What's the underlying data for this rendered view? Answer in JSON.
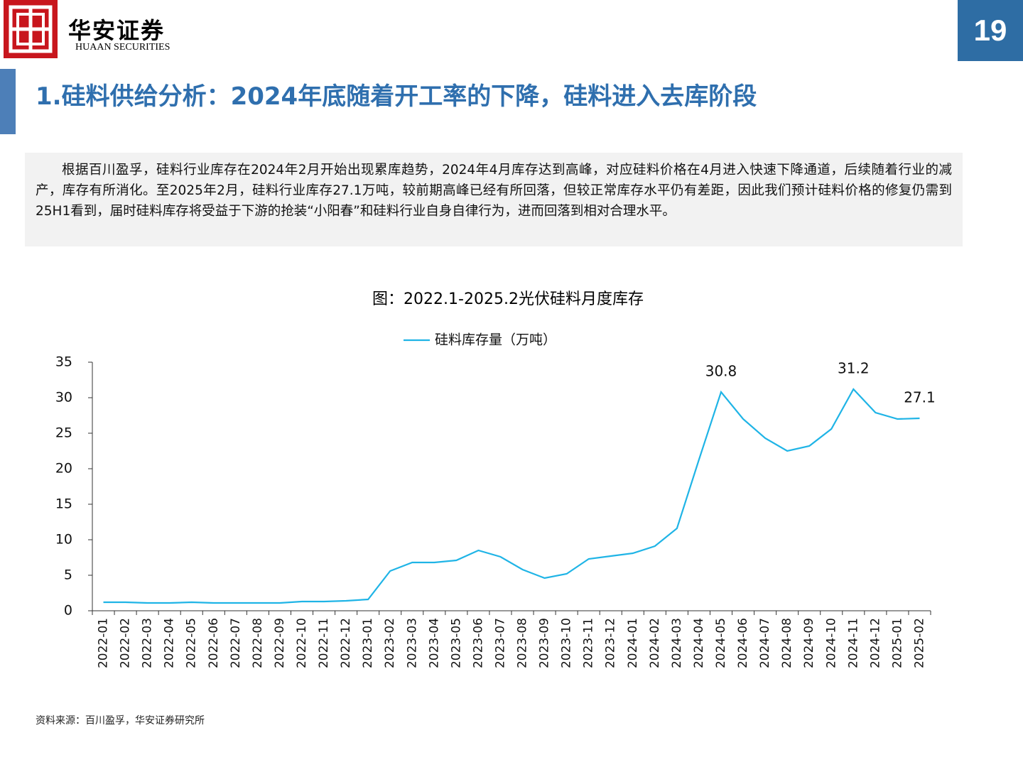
{
  "header": {
    "brand": "华安证券",
    "brand_en": "HUAAN SECURITIES",
    "page": "19",
    "title": "1.硅料供给分析：2024年底随着开工率的下降，硅料进入去库阶段"
  },
  "summary": "根据百川盈孚，硅料行业库存在2024年2月开始出现累库趋势，2024年4月库存达到高峰，对应硅料价格在4月进入快速下降通道，后续随着行业的减产，库存有所消化。至2025年2月，硅料行业库存27.1万吨，较前期高峰已经有所回落，但较正常库存水平仍有差距，因此我们预计硅料价格的修复仍需到25H1看到，届时硅料库存将受益于下游的抢装“小阳春”和硅料行业自身自律行为，进而回落到相对合理水平。",
  "chart_data": {
    "type": "line",
    "title": "图：2022.1-2025.2光伏硅料月度库存",
    "categories": [
      "2022-01",
      "2022-02",
      "2022-03",
      "2022-04",
      "2022-05",
      "2022-06",
      "2022-07",
      "2022-08",
      "2022-09",
      "2022-10",
      "2022-11",
      "2022-12",
      "2023-01",
      "2023-02",
      "2023-03",
      "2023-04",
      "2023-05",
      "2023-06",
      "2023-07",
      "2023-08",
      "2023-09",
      "2023-10",
      "2023-11",
      "2023-12",
      "2024-01",
      "2024-02",
      "2024-03",
      "2024-04",
      "2024-05",
      "2024-06",
      "2024-07",
      "2024-08",
      "2024-09",
      "2024-10",
      "2024-11",
      "2024-12",
      "2025-01",
      "2025-02"
    ],
    "series": [
      {
        "name": "硅料库存量（万吨）",
        "color": "#1fb4e6",
        "values": [
          1.2,
          1.2,
          1.1,
          1.1,
          1.2,
          1.1,
          1.1,
          1.1,
          1.1,
          1.3,
          1.3,
          1.4,
          1.6,
          5.6,
          6.8,
          6.8,
          7.1,
          8.5,
          7.6,
          5.8,
          4.6,
          5.2,
          7.3,
          7.7,
          8.1,
          9.1,
          11.6,
          21.3,
          30.8,
          27.0,
          24.3,
          22.5,
          23.2,
          25.6,
          31.2,
          27.9,
          27.0,
          27.1
        ],
        "value_labels": [
          null,
          null,
          null,
          null,
          null,
          null,
          null,
          null,
          null,
          null,
          null,
          null,
          null,
          null,
          null,
          null,
          null,
          null,
          null,
          null,
          null,
          null,
          null,
          null,
          null,
          null,
          null,
          null,
          "30.8",
          null,
          null,
          null,
          null,
          null,
          "31.2",
          null,
          null,
          "27.1"
        ]
      }
    ],
    "ylim": [
      0,
      35
    ],
    "yticks": [
      0,
      5,
      10,
      15,
      20,
      25,
      30,
      35
    ],
    "grid": false,
    "legend": "top"
  },
  "source": "资料来源：百川盈孚，华安证券研究所"
}
